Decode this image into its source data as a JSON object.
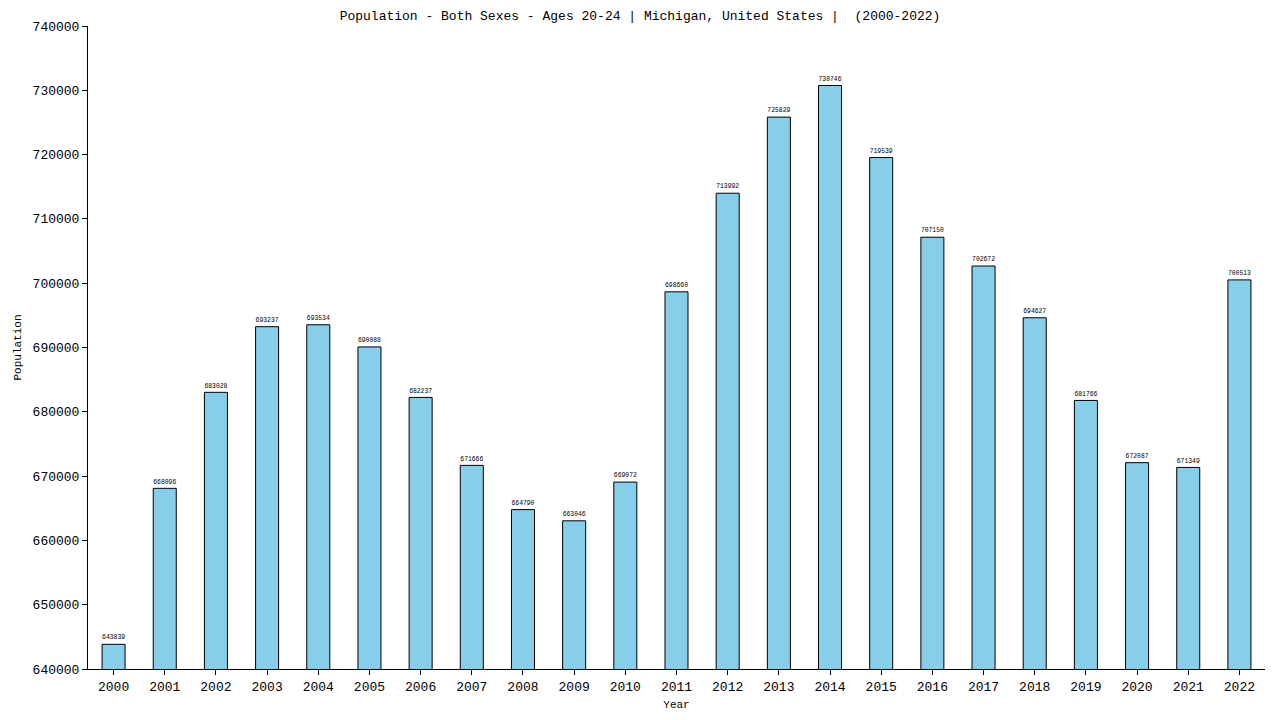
{
  "chart_data": {
    "type": "bar",
    "title": "Population - Both Sexes - Ages 20-24 | Michigan, United States |  (2000-2022)",
    "x_label": "Year",
    "y_label": "Population",
    "categories": [
      "2000",
      "2001",
      "2002",
      "2003",
      "2004",
      "2005",
      "2006",
      "2007",
      "2008",
      "2009",
      "2010",
      "2011",
      "2012",
      "2013",
      "2014",
      "2015",
      "2016",
      "2017",
      "2018",
      "2019",
      "2020",
      "2021",
      "2022"
    ],
    "values": [
      643839,
      668096,
      683028,
      693237,
      693534,
      690088,
      682237,
      671666,
      664790,
      663046,
      669072,
      698660,
      713992,
      725829,
      730746,
      719539,
      707150,
      702672,
      694627,
      681766,
      672087,
      671349,
      700513
    ],
    "color": "#87ceeb",
    "ylim": [
      640000,
      740000
    ],
    "yticks": [
      640000,
      650000,
      660000,
      670000,
      680000,
      690000,
      700000,
      710000,
      720000,
      730000,
      740000
    ],
    "grid": false,
    "data_labels": true
  }
}
